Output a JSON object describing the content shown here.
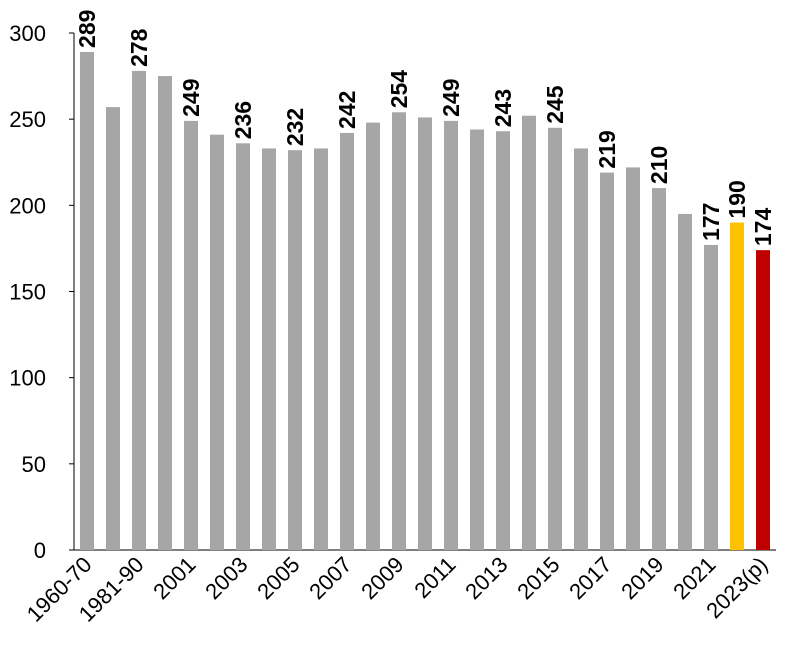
{
  "chart_data": {
    "type": "bar",
    "categories": [
      "1960-70",
      null,
      "1981-90",
      null,
      "2001",
      null,
      "2003",
      null,
      "2005",
      null,
      "2007",
      null,
      "2009",
      null,
      "2011",
      null,
      "2013",
      null,
      "2015",
      null,
      "2017",
      null,
      "2019",
      null,
      "2021",
      null,
      "2023(p)"
    ],
    "values": [
      289,
      257,
      278,
      275,
      249,
      241,
      236,
      233,
      232,
      233,
      242,
      248,
      254,
      251,
      249,
      244,
      243,
      252,
      245,
      233,
      219,
      222,
      210,
      195,
      177,
      190,
      174
    ],
    "value_labels": [
      "289",
      null,
      "278",
      null,
      "249",
      null,
      "236",
      null,
      "232",
      null,
      "242",
      null,
      "254",
      null,
      "249",
      null,
      "243",
      null,
      "245",
      null,
      "219",
      null,
      "210",
      null,
      "177",
      "190",
      "174"
    ],
    "colors": [
      "#a6a6a6",
      "#a6a6a6",
      "#a6a6a6",
      "#a6a6a6",
      "#a6a6a6",
      "#a6a6a6",
      "#a6a6a6",
      "#a6a6a6",
      "#a6a6a6",
      "#a6a6a6",
      "#a6a6a6",
      "#a6a6a6",
      "#a6a6a6",
      "#a6a6a6",
      "#a6a6a6",
      "#a6a6a6",
      "#a6a6a6",
      "#a6a6a6",
      "#a6a6a6",
      "#a6a6a6",
      "#a6a6a6",
      "#a6a6a6",
      "#a6a6a6",
      "#a6a6a6",
      "#a6a6a6",
      "#ffc000",
      "#c00000"
    ],
    "ylim": [
      0,
      300
    ],
    "yticks": [
      0,
      50,
      100,
      150,
      200,
      250,
      300
    ],
    "grid": false
  }
}
